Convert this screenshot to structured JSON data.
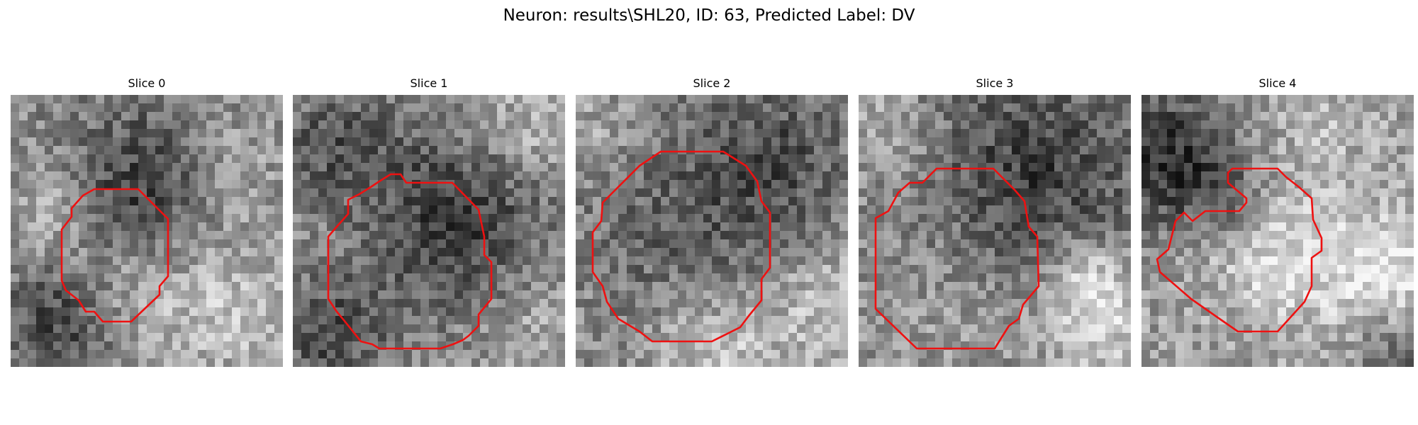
{
  "figure": {
    "title": "Neuron: results\\SHL20, ID: 63, Predicted Label: DV"
  },
  "slices": [
    {
      "title": "Slice 0"
    },
    {
      "title": "Slice 1"
    },
    {
      "title": "Slice 2"
    },
    {
      "title": "Slice 3"
    },
    {
      "title": "Slice 4"
    }
  ],
  "colors": {
    "contour": "#ee1111",
    "background": "#ffffff"
  }
}
